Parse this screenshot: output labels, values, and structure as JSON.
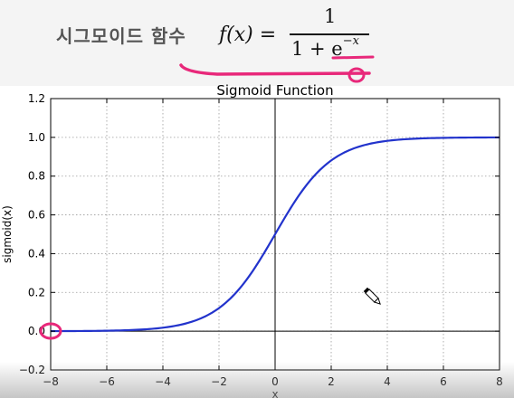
{
  "header": {
    "korean_title": "시그모이드 함수",
    "formula": {
      "lhs": "f(x) =",
      "numerator": "1",
      "denominator_base": "1 + e",
      "denominator_exponent": "−x"
    }
  },
  "colors": {
    "curve": "#2233cc",
    "annotation": "#e8287a",
    "axis_lines": "#000000",
    "grid": "#9a9a9a"
  },
  "icons": {
    "cursor": "pencil-cursor-icon"
  },
  "chart_data": {
    "type": "line",
    "title": "Sigmoid Function",
    "xlabel": "x",
    "ylabel": "sigmoid(x)",
    "xlim": [
      -8,
      8
    ],
    "ylim": [
      -0.2,
      1.2
    ],
    "xticks": [
      -8,
      -6,
      -4,
      -2,
      0,
      2,
      4,
      6,
      8
    ],
    "xtick_labels": [
      "−8",
      "−6",
      "−4",
      "−2",
      "0",
      "2",
      "4",
      "6",
      "8"
    ],
    "yticks": [
      -0.2,
      0.0,
      0.2,
      0.4,
      0.6,
      0.8,
      1.0,
      1.2
    ],
    "ytick_labels": [
      "−0.2",
      "0.0",
      "0.2",
      "0.4",
      "0.6",
      "0.8",
      "1.0",
      "1.2"
    ],
    "grid": true,
    "reference_lines": {
      "x": 0,
      "y": 0
    },
    "series": [
      {
        "function": "sigmoid",
        "x": [
          -8,
          -7,
          -6,
          -5,
          -4,
          -3,
          -2,
          -1,
          0,
          1,
          2,
          3,
          4,
          5,
          6,
          7,
          8
        ],
        "y": [
          0.0003,
          0.0009,
          0.0025,
          0.0067,
          0.018,
          0.047,
          0.119,
          0.269,
          0.5,
          0.731,
          0.881,
          0.953,
          0.982,
          0.993,
          0.998,
          0.999,
          1.0
        ]
      }
    ]
  }
}
